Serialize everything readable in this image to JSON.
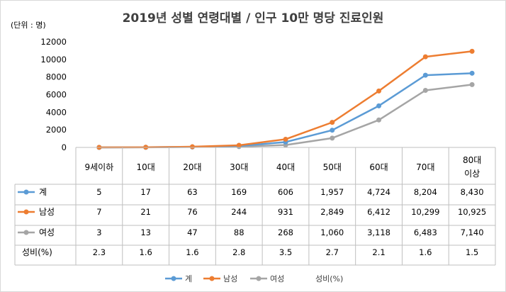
{
  "chart_data": {
    "type": "line",
    "title": "2019년 성별 연령대별 / 인구 10만 명당 진료인원",
    "unit_label": "(단위 : 명)",
    "ylim": [
      0,
      12000
    ],
    "yticks": [
      "0",
      "2000",
      "4000",
      "6000",
      "8000",
      "10000",
      "12000"
    ],
    "categories": [
      "9세이하",
      "10대",
      "20대",
      "30대",
      "40대",
      "50대",
      "60대",
      "70대",
      "80대\n이상"
    ],
    "series": [
      {
        "name": "계",
        "color": "#5b9bd5",
        "values": [
          5,
          17,
          63,
          169,
          606,
          1957,
          4724,
          8204,
          8430
        ],
        "labels": [
          "5",
          "17",
          "63",
          "169",
          "606",
          "1,957",
          "4,724",
          "8,204",
          "8,430"
        ]
      },
      {
        "name": "남성",
        "color": "#ed7d31",
        "values": [
          7,
          21,
          76,
          244,
          931,
          2849,
          6412,
          10299,
          10925
        ],
        "labels": [
          "7",
          "21",
          "76",
          "244",
          "931",
          "2,849",
          "6,412",
          "10,299",
          "10,925"
        ]
      },
      {
        "name": "여성",
        "color": "#a5a5a5",
        "values": [
          3,
          13,
          47,
          88,
          268,
          1060,
          3118,
          6483,
          7140
        ],
        "labels": [
          "3",
          "13",
          "47",
          "88",
          "268",
          "1,060",
          "3,118",
          "6,483",
          "7,140"
        ]
      }
    ],
    "ratio": {
      "name": "성비(%)",
      "legend_name": "성비(%)",
      "labels": [
        "2.3",
        "1.6",
        "1.6",
        "2.8",
        "3.5",
        "2.7",
        "2.1",
        "1.6",
        "1.5"
      ]
    },
    "legend_position": "bottom"
  }
}
